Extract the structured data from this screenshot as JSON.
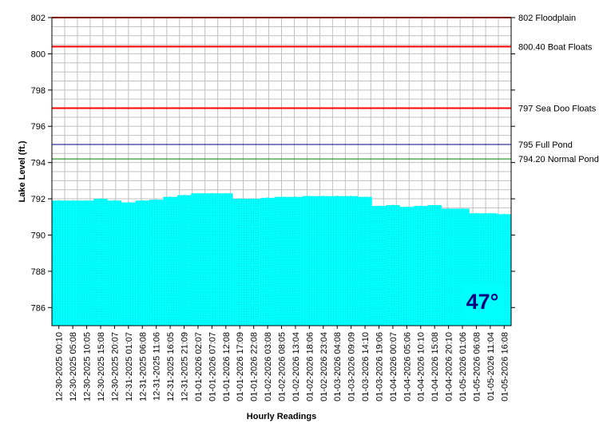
{
  "chart_data": {
    "type": "area",
    "xlabel": "Hourly Readings",
    "ylabel": "Lake Level (ft.)",
    "ylim": [
      785,
      802
    ],
    "y_ticks": [
      786,
      788,
      790,
      792,
      794,
      796,
      798,
      800,
      802
    ],
    "grid": true,
    "categories": [
      "12-30-2025 00:10",
      "12-30-2025 05:08",
      "12-30-2025 10:05",
      "12-30-2025 15:08",
      "12-30-2025 20:07",
      "12-31-2025 01:07",
      "12-31-2025 06:08",
      "12-31-2025 11:06",
      "12-31-2025 16:05",
      "12-31-2025 21:09",
      "01-01-2026 02:07",
      "01-01-2026 07:07",
      "01-01-2026 12:08",
      "01-01-2026 17:09",
      "01-01-2026 22:08",
      "01-02-2026 03:08",
      "01-02-2026 08:05",
      "01-02-2026 13:04",
      "01-02-2026 18:06",
      "01-02-2026 23:04",
      "01-03-2026 04:08",
      "01-03-2026 09:09",
      "01-03-2026 14:10",
      "01-03-2026 19:06",
      "01-04-2026 00:07",
      "01-04-2026 05:06",
      "01-04-2026 10:10",
      "01-04-2026 15:08",
      "01-04-2026 20:10",
      "01-05-2026 01:06",
      "01-05-2026 06:08",
      "01-05-2026 11:04",
      "01-05-2026 16:08"
    ],
    "series": [
      {
        "values": [
          791.9,
          791.9,
          791.9,
          792.0,
          791.9,
          791.8,
          791.9,
          791.95,
          792.1,
          792.2,
          792.3,
          792.3,
          792.3,
          792.0,
          792.0,
          792.05,
          792.1,
          792.1,
          792.15,
          792.15,
          792.15,
          792.15,
          792.1,
          791.6,
          791.65,
          791.55,
          791.6,
          791.65,
          791.45,
          791.45,
          791.2,
          791.2,
          791.15
        ],
        "color": "#00ffff"
      }
    ],
    "reference_lines": [
      {
        "value": 802,
        "label": "802 Floodplain",
        "color": "#ff0000"
      },
      {
        "value": 800.4,
        "label": "800.40 Boat Floats",
        "color": "#ff0000"
      },
      {
        "value": 797,
        "label": "797 Sea Doo Floats",
        "color": "#ff0000"
      },
      {
        "value": 795,
        "label": "795 Full Pond",
        "color": "#000080"
      },
      {
        "value": 794.2,
        "label": "794.20 Normal Pond",
        "color": "#008000"
      }
    ],
    "annotation": {
      "text": "47°",
      "background": "#00ffff",
      "color": "#000080",
      "position": "bottom-right"
    }
  }
}
